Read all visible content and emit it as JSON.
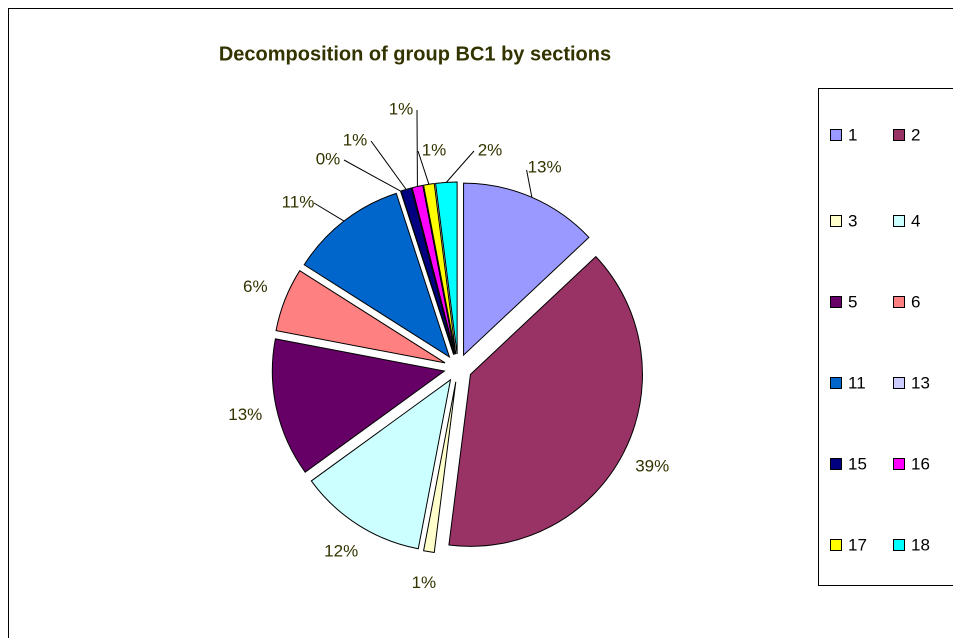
{
  "chart_data": {
    "type": "pie",
    "title": "Decomposition of group BC1 by sections",
    "categories": [
      "1",
      "2",
      "3",
      "4",
      "5",
      "6",
      "11",
      "13",
      "15",
      "16",
      "17",
      "18"
    ],
    "values": [
      13,
      39,
      1,
      12,
      13,
      6,
      11,
      0,
      1,
      1,
      1,
      2
    ],
    "value_labels": [
      "13%",
      "39%",
      "1%",
      "12%",
      "13%",
      "6%",
      "11%",
      "0%",
      "1%",
      "1%",
      "1%",
      "2%"
    ],
    "colors": [
      "#9999ff",
      "#993366",
      "#ffffcc",
      "#ccffff",
      "#660066",
      "#ff8080",
      "#0066cc",
      "#ccccff",
      "#000080",
      "#ff00ff",
      "#ffff00",
      "#00ffff"
    ],
    "legend": "right"
  }
}
